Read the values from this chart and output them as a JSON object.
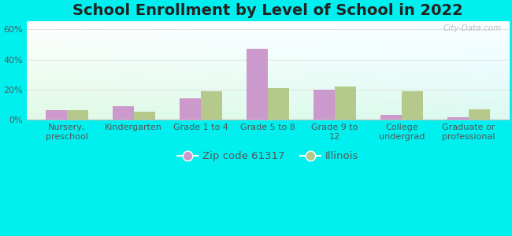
{
  "title": "School Enrollment by Level of School in 2022",
  "categories": [
    "Nursery,\npreschool",
    "Kindergarten",
    "Grade 1 to 4",
    "Grade 5 to 8",
    "Grade 9 to\n12",
    "College\nundergrad",
    "Graduate or\nprofessional"
  ],
  "zip_values": [
    6.5,
    9.0,
    14.0,
    47.0,
    20.0,
    3.5,
    1.5
  ],
  "il_values": [
    6.5,
    5.5,
    19.0,
    21.0,
    22.0,
    19.0,
    7.0
  ],
  "zip_color": "#cc99cc",
  "il_color": "#b5c98a",
  "background_outer": "#00f0f0",
  "ylim": [
    0,
    65
  ],
  "yticks": [
    0,
    20,
    40,
    60
  ],
  "legend_zip": "Zip code 61317",
  "legend_il": "Illinois",
  "watermark": "City-Data.com",
  "title_fontsize": 14,
  "tick_fontsize": 8,
  "legend_fontsize": 9.5
}
